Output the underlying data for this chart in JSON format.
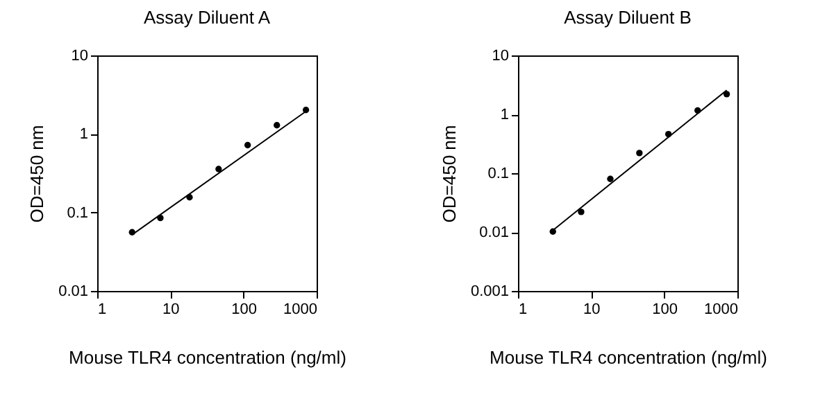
{
  "chart_data": [
    {
      "type": "scatter",
      "title": "Assay Diluent A",
      "xlabel": "Mouse TLR4 concentration (ng/ml)",
      "ylabel": "OD=450 nm",
      "log": "xy",
      "xlim": [
        1,
        1000
      ],
      "xticks": [
        1,
        10,
        100,
        1000
      ],
      "ylim": [
        0.01,
        10
      ],
      "yticks": [
        0.01,
        0.1,
        1,
        10
      ],
      "grid": false,
      "series": [
        {
          "marker": "circle",
          "color": "#000000",
          "x": [
            3,
            7.3,
            18.3,
            45.7,
            114,
            286,
            714
          ],
          "values": [
            0.056,
            0.085,
            0.156,
            0.357,
            0.72,
            1.29,
            2.02
          ]
        },
        {
          "type": "line",
          "color": "#000000",
          "line_style": "solid",
          "x": [
            3,
            714
          ],
          "values": [
            0.052,
            1.94
          ]
        }
      ]
    },
    {
      "type": "scatter",
      "title": "Assay Diluent B",
      "xlabel": "Mouse TLR4 concentration (ng/ml)",
      "ylabel": "OD=450 nm",
      "log": "xy",
      "xlim": [
        1,
        1000
      ],
      "xticks": [
        1,
        10,
        100,
        1000
      ],
      "ylim": [
        0.001,
        10
      ],
      "yticks": [
        0.001,
        0.01,
        0.1,
        1,
        10
      ],
      "grid": false,
      "series": [
        {
          "marker": "circle",
          "color": "#000000",
          "x": [
            3,
            7.3,
            18.3,
            45.7,
            114,
            286,
            714
          ],
          "values": [
            0.0102,
            0.022,
            0.08,
            0.22,
            0.46,
            1.16,
            2.2
          ]
        },
        {
          "type": "line",
          "color": "#000000",
          "line_style": "solid",
          "x": [
            3,
            714
          ],
          "values": [
            0.0107,
            2.57
          ]
        }
      ]
    }
  ]
}
